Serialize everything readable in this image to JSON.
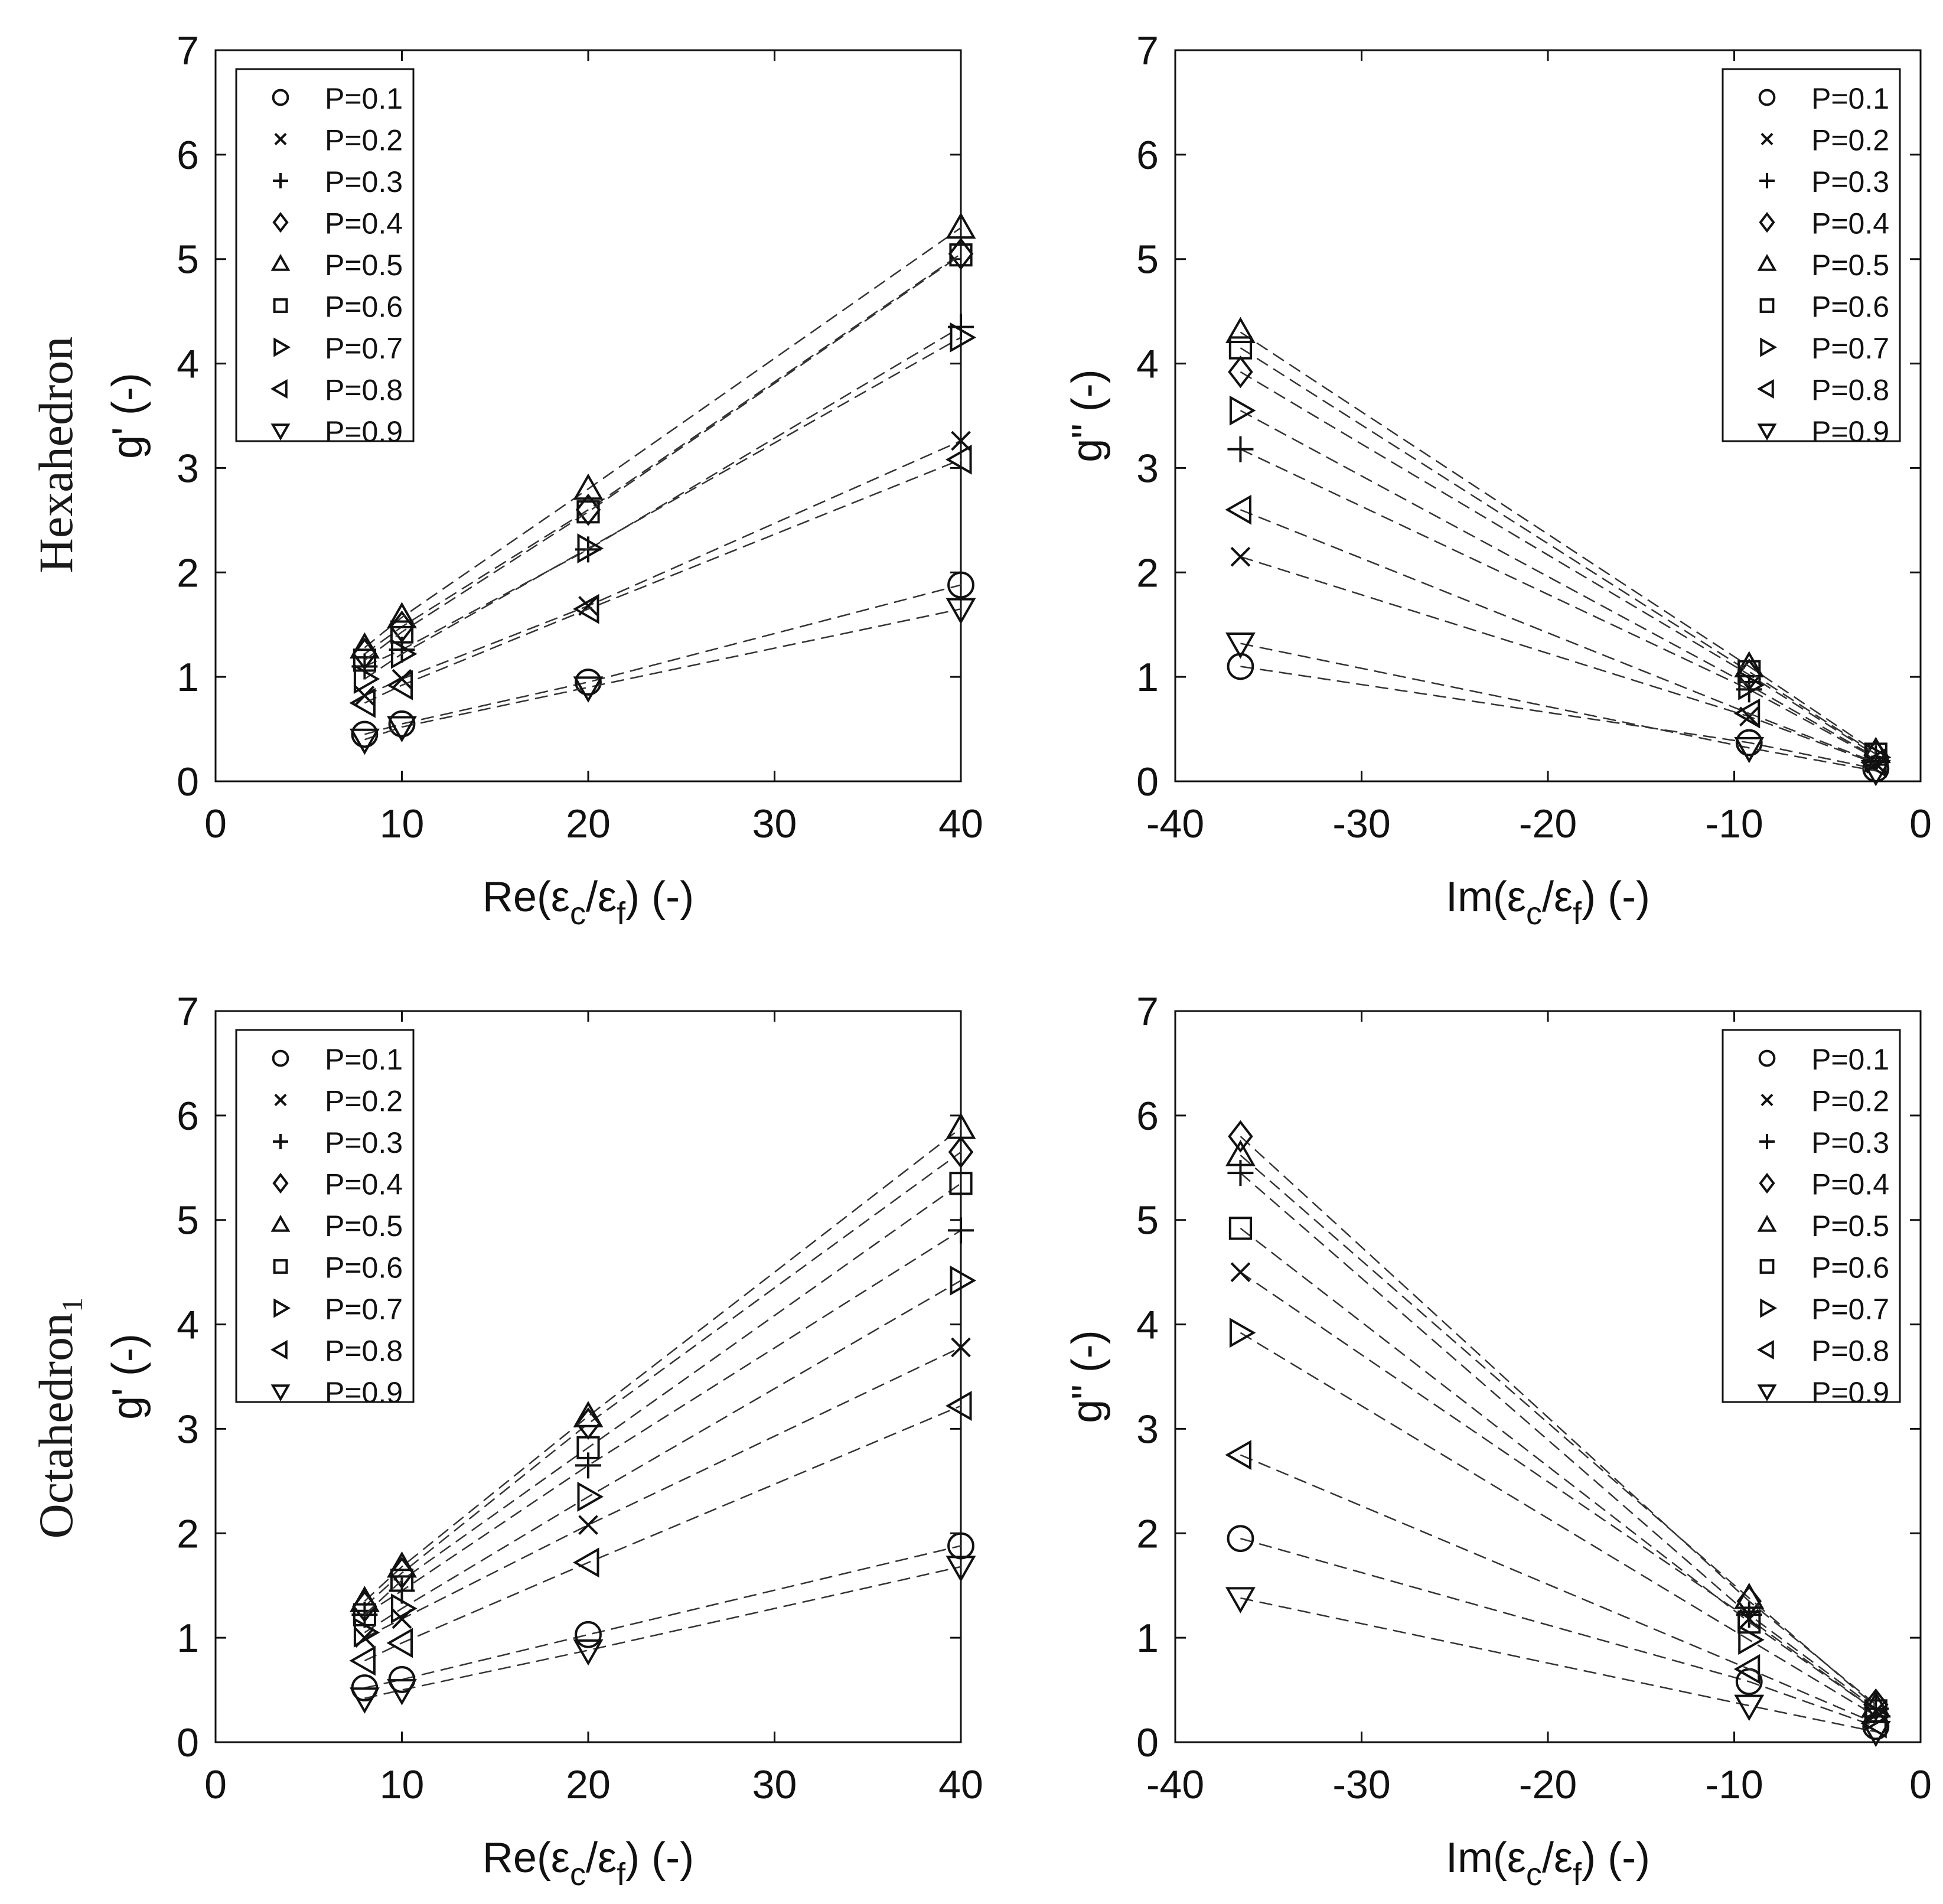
{
  "figure": {
    "row_labels": [
      "Hexahedron",
      "Octahedron₁"
    ]
  },
  "series_symbols": [
    "circle",
    "x",
    "plus",
    "diamond",
    "triangle-up",
    "square",
    "triangle-right",
    "triangle-left",
    "triangle-down"
  ],
  "colors": {
    "ink": "#111111",
    "dash": "#333333",
    "background": "#ffffff"
  },
  "chart_data": [
    {
      "id": "hex-real",
      "type": "scatter",
      "row": "Hexahedron",
      "xlabel": "Re(εc/εf) (-)",
      "xlabel_main": "Re(ε",
      "xlabel_sub1": "c",
      "xlabel_mid": "/ε",
      "xlabel_sub2": "f",
      "xlabel_tail": ") (-)",
      "ylabel": "g' (-)",
      "xlim": [
        0,
        40
      ],
      "ylim": [
        0,
        7
      ],
      "xticks": [
        0,
        10,
        20,
        30,
        40
      ],
      "yticks": [
        0,
        1,
        2,
        3,
        4,
        5,
        6,
        7
      ],
      "legend": "top-left",
      "x": [
        8,
        10,
        20,
        40
      ],
      "series": [
        {
          "name": "P=0.1",
          "values": [
            0.45,
            0.55,
            0.95,
            1.88
          ]
        },
        {
          "name": "P=0.2",
          "values": [
            0.82,
            0.98,
            1.68,
            3.26
          ]
        },
        {
          "name": "P=0.3",
          "values": [
            1.1,
            1.26,
            2.22,
            4.35
          ]
        },
        {
          "name": "P=0.4",
          "values": [
            1.22,
            1.48,
            2.6,
            5.05
          ]
        },
        {
          "name": "P=0.5",
          "values": [
            1.28,
            1.57,
            2.8,
            5.3
          ]
        },
        {
          "name": "P=0.6",
          "values": [
            1.16,
            1.43,
            2.58,
            5.04
          ]
        },
        {
          "name": "P=0.7",
          "values": [
            0.98,
            1.22,
            2.23,
            4.25
          ]
        },
        {
          "name": "P=0.8",
          "values": [
            0.75,
            0.92,
            1.65,
            3.08
          ]
        },
        {
          "name": "P=0.9",
          "values": [
            0.4,
            0.52,
            0.9,
            1.65
          ]
        }
      ]
    },
    {
      "id": "hex-imag",
      "type": "scatter",
      "row": "Hexahedron",
      "xlabel": "Im(εc/εf) (-)",
      "xlabel_main": "Im(ε",
      "xlabel_sub1": "c",
      "xlabel_mid": "/ε",
      "xlabel_sub2": "f",
      "xlabel_tail": ") (-)",
      "ylabel": "g\" (-)",
      "xlim": [
        -40,
        0
      ],
      "ylim": [
        0,
        7
      ],
      "xticks": [
        -40,
        -30,
        -20,
        -10,
        0
      ],
      "yticks": [
        0,
        1,
        2,
        3,
        4,
        5,
        6,
        7
      ],
      "legend": "top-right",
      "x": [
        -36.5,
        -9.2,
        -2.4
      ],
      "series": [
        {
          "name": "P=0.1",
          "values": [
            1.1,
            0.37,
            0.12
          ]
        },
        {
          "name": "P=0.2",
          "values": [
            2.15,
            0.62,
            0.17
          ]
        },
        {
          "name": "P=0.3",
          "values": [
            3.18,
            0.88,
            0.22
          ]
        },
        {
          "name": "P=0.4",
          "values": [
            3.92,
            1.02,
            0.25
          ]
        },
        {
          "name": "P=0.5",
          "values": [
            4.3,
            1.1,
            0.28
          ]
        },
        {
          "name": "P=0.6",
          "values": [
            4.15,
            1.05,
            0.26
          ]
        },
        {
          "name": "P=0.7",
          "values": [
            3.55,
            0.92,
            0.23
          ]
        },
        {
          "name": "P=0.8",
          "values": [
            2.6,
            0.65,
            0.18
          ]
        },
        {
          "name": "P=0.9",
          "values": [
            1.32,
            0.32,
            0.1
          ]
        }
      ]
    },
    {
      "id": "oct-real",
      "type": "scatter",
      "row": "Octahedron₁",
      "xlabel": "Re(εc/εf) (-)",
      "xlabel_main": "Re(ε",
      "xlabel_sub1": "c",
      "xlabel_mid": "/ε",
      "xlabel_sub2": "f",
      "xlabel_tail": ") (-)",
      "ylabel": "g' (-)",
      "xlim": [
        0,
        40
      ],
      "ylim": [
        0,
        7
      ],
      "xticks": [
        0,
        10,
        20,
        30,
        40
      ],
      "yticks": [
        0,
        1,
        2,
        3,
        4,
        5,
        6,
        7
      ],
      "legend": "top-left",
      "x": [
        8,
        10,
        20,
        40
      ],
      "series": [
        {
          "name": "P=0.1",
          "values": [
            0.52,
            0.6,
            1.03,
            1.88
          ]
        },
        {
          "name": "P=0.2",
          "values": [
            1.0,
            1.18,
            2.08,
            3.78
          ]
        },
        {
          "name": "P=0.3",
          "values": [
            1.22,
            1.45,
            2.65,
            4.9
          ]
        },
        {
          "name": "P=0.4",
          "values": [
            1.3,
            1.62,
            3.05,
            5.65
          ]
        },
        {
          "name": "P=0.5",
          "values": [
            1.35,
            1.68,
            3.12,
            5.88
          ]
        },
        {
          "name": "P=0.6",
          "values": [
            1.22,
            1.55,
            2.82,
            5.35
          ]
        },
        {
          "name": "P=0.7",
          "values": [
            1.05,
            1.28,
            2.35,
            4.42
          ]
        },
        {
          "name": "P=0.8",
          "values": [
            0.78,
            0.95,
            1.72,
            3.22
          ]
        },
        {
          "name": "P=0.9",
          "values": [
            0.42,
            0.5,
            0.88,
            1.68
          ]
        }
      ]
    },
    {
      "id": "oct-imag",
      "type": "scatter",
      "row": "Octahedron₁",
      "xlabel": "Im(εc/εf) (-)",
      "xlabel_main": "Im(ε",
      "xlabel_sub1": "c",
      "xlabel_mid": "/ε",
      "xlabel_sub2": "f",
      "xlabel_tail": ") (-)",
      "ylabel": "g\" (-)",
      "xlim": [
        -40,
        0
      ],
      "ylim": [
        0,
        7
      ],
      "xticks": [
        -40,
        -30,
        -20,
        -10,
        0
      ],
      "yticks": [
        0,
        1,
        2,
        3,
        4,
        5,
        6,
        7
      ],
      "legend": "top-right",
      "x": [
        -36.5,
        -9.2,
        -2.4
      ],
      "series": [
        {
          "name": "P=0.1",
          "values": [
            1.95,
            0.58,
            0.15
          ]
        },
        {
          "name": "P=0.2",
          "values": [
            4.5,
            1.18,
            0.3
          ]
        },
        {
          "name": "P=0.3",
          "values": [
            5.45,
            1.22,
            0.32
          ]
        },
        {
          "name": "P=0.4",
          "values": [
            5.8,
            1.35,
            0.36
          ]
        },
        {
          "name": "P=0.5",
          "values": [
            5.62,
            1.38,
            0.34
          ]
        },
        {
          "name": "P=0.6",
          "values": [
            4.92,
            1.15,
            0.3
          ]
        },
        {
          "name": "P=0.7",
          "values": [
            3.92,
            0.98,
            0.25
          ]
        },
        {
          "name": "P=0.8",
          "values": [
            2.75,
            0.7,
            0.18
          ]
        },
        {
          "name": "P=0.9",
          "values": [
            1.38,
            0.35,
            0.1
          ]
        }
      ]
    }
  ]
}
